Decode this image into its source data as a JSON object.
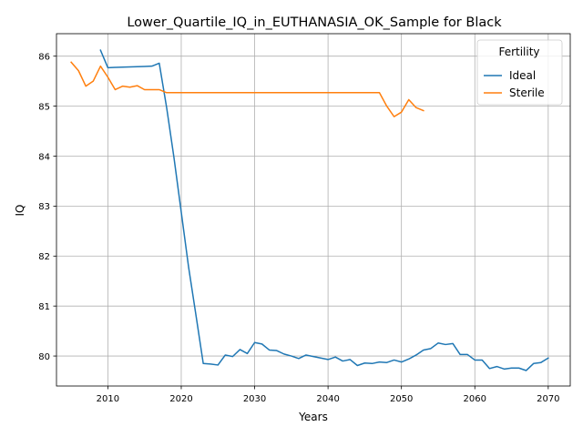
{
  "chart_data": {
    "type": "line",
    "title": "Lower_Quartile_IQ_in_EUTHANASIA_OK_Sample for Black",
    "xlabel": "Years",
    "ylabel": "IQ",
    "xlim": [
      2003,
      2073
    ],
    "ylim": [
      79.4,
      86.45
    ],
    "grid": true,
    "legend_position": "top-right",
    "legend": {
      "title": "Fertility"
    },
    "x_ticks": [
      2010,
      2020,
      2030,
      2040,
      2050,
      2060,
      2070
    ],
    "x_tick_labels": [
      "2010",
      "2020",
      "2030",
      "2040",
      "2050",
      "2060",
      "2070"
    ],
    "y_ticks": [
      80,
      81,
      82,
      83,
      84,
      85,
      86
    ],
    "y_tick_labels": [
      "80",
      "81",
      "82",
      "83",
      "84",
      "85",
      "86"
    ],
    "series": [
      {
        "name": "Ideal",
        "color": "#1f77b4",
        "x": [
          2009,
          2010,
          2011,
          2012,
          2013,
          2014,
          2015,
          2016,
          2017,
          2018,
          2019,
          2020,
          2021,
          2022,
          2023,
          2024,
          2025,
          2026,
          2027,
          2028,
          2029,
          2030,
          2031,
          2032,
          2033,
          2034,
          2035,
          2036,
          2037,
          2038,
          2039,
          2040,
          2041,
          2042,
          2043,
          2044,
          2045,
          2046,
          2047,
          2048,
          2049,
          2050,
          2051,
          2052,
          2053,
          2054,
          2055,
          2056,
          2057,
          2058,
          2059,
          2060,
          2061,
          2062,
          2063,
          2064,
          2065,
          2066,
          2067,
          2068,
          2069,
          2070
        ],
        "y": [
          86.12,
          85.77,
          85.775,
          85.78,
          85.785,
          85.79,
          85.795,
          85.8,
          85.86,
          84.98,
          83.98,
          82.88,
          81.78,
          80.82,
          79.85,
          79.84,
          79.82,
          80.02,
          79.99,
          80.13,
          80.05,
          80.27,
          80.24,
          80.12,
          80.11,
          80.04,
          80.0,
          79.95,
          80.02,
          79.99,
          79.96,
          79.93,
          79.98,
          79.9,
          79.93,
          79.81,
          79.86,
          79.85,
          79.88,
          79.87,
          79.92,
          79.88,
          79.94,
          80.02,
          80.12,
          80.15,
          80.26,
          80.23,
          80.25,
          80.03,
          80.03,
          79.92,
          79.92,
          79.75,
          79.79,
          79.74,
          79.76,
          79.76,
          79.71,
          79.85,
          79.87,
          79.96
        ]
      },
      {
        "name": "Sterile",
        "color": "#ff7f0e",
        "x": [
          2005,
          2006,
          2007,
          2008,
          2009,
          2010,
          2011,
          2012,
          2013,
          2014,
          2015,
          2016,
          2017,
          2018,
          2019,
          2020,
          2021,
          2022,
          2023,
          2024,
          2025,
          2026,
          2027,
          2028,
          2029,
          2030,
          2031,
          2032,
          2033,
          2034,
          2035,
          2036,
          2037,
          2038,
          2039,
          2040,
          2041,
          2042,
          2043,
          2044,
          2045,
          2046,
          2047,
          2048,
          2049,
          2050,
          2051,
          2052,
          2053
        ],
        "y": [
          85.88,
          85.71,
          85.4,
          85.5,
          85.8,
          85.58,
          85.33,
          85.4,
          85.38,
          85.41,
          85.33,
          85.33,
          85.33,
          85.27,
          85.27,
          85.27,
          85.27,
          85.27,
          85.27,
          85.27,
          85.27,
          85.27,
          85.27,
          85.27,
          85.27,
          85.27,
          85.27,
          85.27,
          85.27,
          85.27,
          85.27,
          85.27,
          85.27,
          85.27,
          85.27,
          85.27,
          85.27,
          85.27,
          85.27,
          85.27,
          85.27,
          85.27,
          85.27,
          85.0,
          84.79,
          84.88,
          85.13,
          84.97,
          84.91
        ]
      }
    ]
  }
}
